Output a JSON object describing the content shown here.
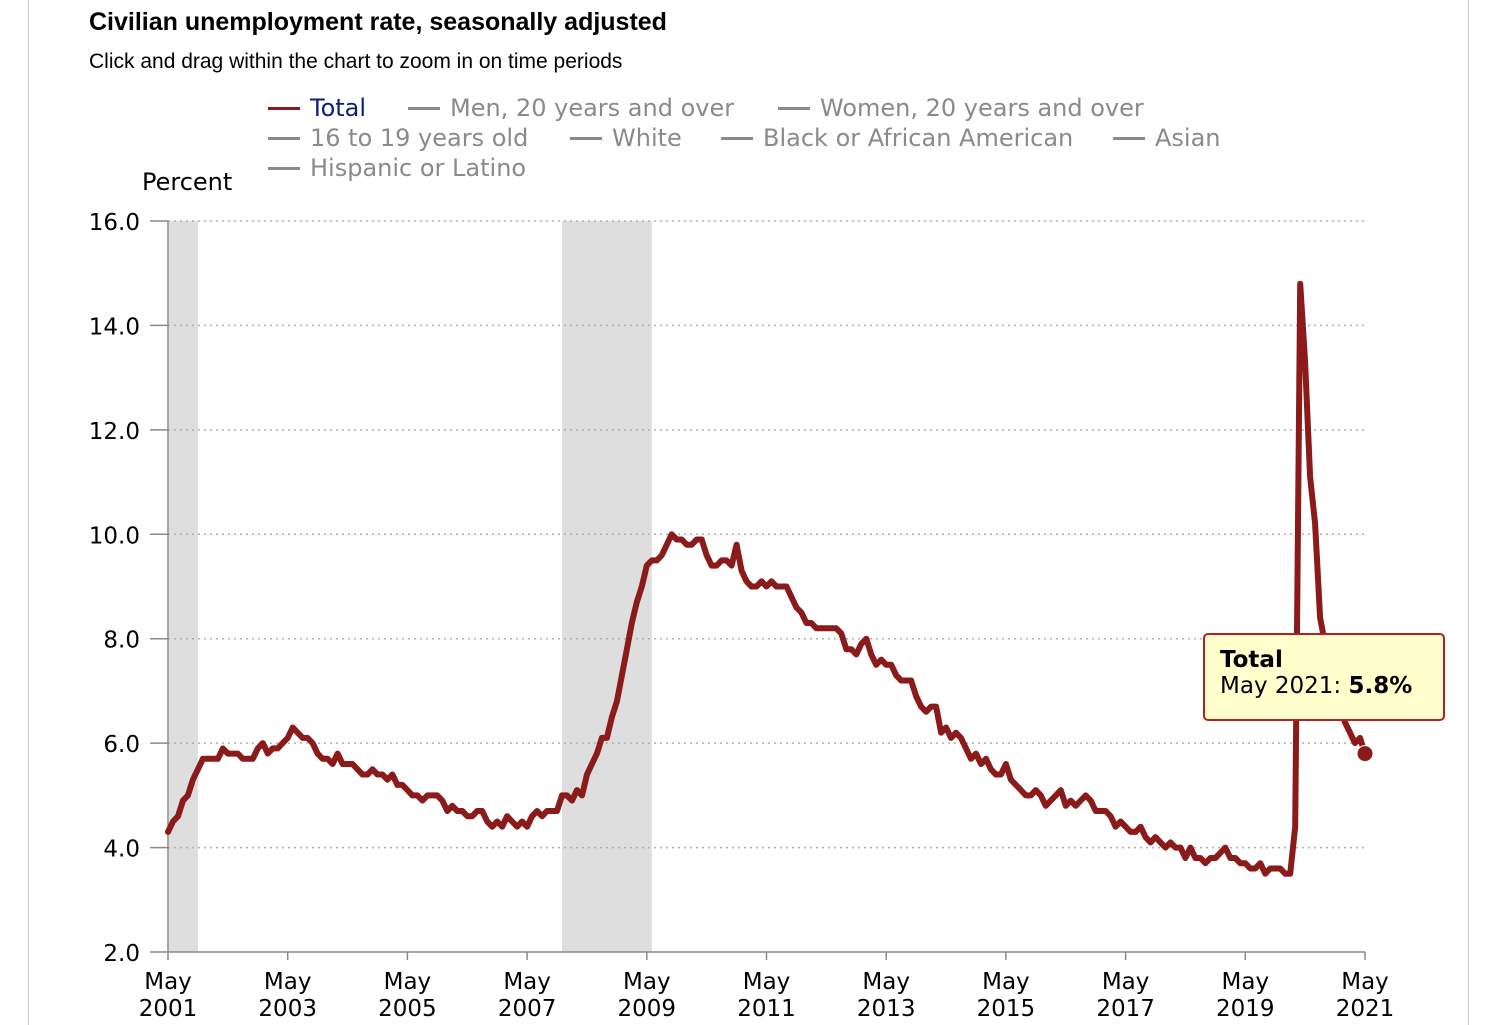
{
  "title": "Civilian unemployment rate, seasonally adjusted",
  "subtitle": "Click and drag within the chart to zoom in on time periods",
  "legend": [
    {
      "label": "Total",
      "active": true
    },
    {
      "label": "Men, 20 years and over",
      "active": false
    },
    {
      "label": "Women, 20 years and over",
      "active": false
    },
    {
      "label": "16 to 19 years old",
      "active": false
    },
    {
      "label": "White",
      "active": false
    },
    {
      "label": "Black or African American",
      "active": false
    },
    {
      "label": "Asian",
      "active": false
    },
    {
      "label": "Hispanic or Latino",
      "active": false
    }
  ],
  "tooltip": {
    "series": "Total",
    "date": "May 2021",
    "value": "5.8%"
  },
  "colors": {
    "series": "#8b1a1a",
    "recession": "#dedede",
    "grid": "#b0b0b0",
    "legend_active_text": "#0b1f7a",
    "legend_inactive": "#8a8a8a"
  },
  "chart_data": {
    "type": "line",
    "title": "Civilian unemployment rate, seasonally adjusted",
    "ylabel": "Percent",
    "xlabel": "",
    "ylim": [
      2.0,
      16.0
    ],
    "yticks": [
      "16.0",
      "14.0",
      "12.0",
      "10.0",
      "8.0",
      "6.0",
      "4.0",
      "2.0"
    ],
    "xlim": [
      "2001-05",
      "2021-05"
    ],
    "xticks": [
      {
        "month": "May",
        "year": "2001"
      },
      {
        "month": "May",
        "year": "2003"
      },
      {
        "month": "May",
        "year": "2005"
      },
      {
        "month": "May",
        "year": "2007"
      },
      {
        "month": "May",
        "year": "2009"
      },
      {
        "month": "May",
        "year": "2011"
      },
      {
        "month": "May",
        "year": "2013"
      },
      {
        "month": "May",
        "year": "2015"
      },
      {
        "month": "May",
        "year": "2017"
      },
      {
        "month": "May",
        "year": "2019"
      },
      {
        "month": "May",
        "year": "2021"
      }
    ],
    "grid": true,
    "recessions": [
      [
        "2001-03",
        "2001-11"
      ],
      [
        "2007-12",
        "2009-06"
      ]
    ],
    "series": [
      {
        "name": "Total",
        "x": [
          "2001-05",
          "2001-06",
          "2001-07",
          "2001-08",
          "2001-09",
          "2001-10",
          "2001-11",
          "2001-12",
          "2002-01",
          "2002-02",
          "2002-03",
          "2002-04",
          "2002-05",
          "2002-06",
          "2002-07",
          "2002-08",
          "2002-09",
          "2002-10",
          "2002-11",
          "2002-12",
          "2003-01",
          "2003-02",
          "2003-03",
          "2003-04",
          "2003-05",
          "2003-06",
          "2003-07",
          "2003-08",
          "2003-09",
          "2003-10",
          "2003-11",
          "2003-12",
          "2004-01",
          "2004-02",
          "2004-03",
          "2004-04",
          "2004-05",
          "2004-06",
          "2004-07",
          "2004-08",
          "2004-09",
          "2004-10",
          "2004-11",
          "2004-12",
          "2005-01",
          "2005-02",
          "2005-03",
          "2005-04",
          "2005-05",
          "2005-06",
          "2005-07",
          "2005-08",
          "2005-09",
          "2005-10",
          "2005-11",
          "2005-12",
          "2006-01",
          "2006-02",
          "2006-03",
          "2006-04",
          "2006-05",
          "2006-06",
          "2006-07",
          "2006-08",
          "2006-09",
          "2006-10",
          "2006-11",
          "2006-12",
          "2007-01",
          "2007-02",
          "2007-03",
          "2007-04",
          "2007-05",
          "2007-06",
          "2007-07",
          "2007-08",
          "2007-09",
          "2007-10",
          "2007-11",
          "2007-12",
          "2008-01",
          "2008-02",
          "2008-03",
          "2008-04",
          "2008-05",
          "2008-06",
          "2008-07",
          "2008-08",
          "2008-09",
          "2008-10",
          "2008-11",
          "2008-12",
          "2009-01",
          "2009-02",
          "2009-03",
          "2009-04",
          "2009-05",
          "2009-06",
          "2009-07",
          "2009-08",
          "2009-09",
          "2009-10",
          "2009-11",
          "2009-12",
          "2010-01",
          "2010-02",
          "2010-03",
          "2010-04",
          "2010-05",
          "2010-06",
          "2010-07",
          "2010-08",
          "2010-09",
          "2010-10",
          "2010-11",
          "2010-12",
          "2011-01",
          "2011-02",
          "2011-03",
          "2011-04",
          "2011-05",
          "2011-06",
          "2011-07",
          "2011-08",
          "2011-09",
          "2011-10",
          "2011-11",
          "2011-12",
          "2012-01",
          "2012-02",
          "2012-03",
          "2012-04",
          "2012-05",
          "2012-06",
          "2012-07",
          "2012-08",
          "2012-09",
          "2012-10",
          "2012-11",
          "2012-12",
          "2013-01",
          "2013-02",
          "2013-03",
          "2013-04",
          "2013-05",
          "2013-06",
          "2013-07",
          "2013-08",
          "2013-09",
          "2013-10",
          "2013-11",
          "2013-12",
          "2014-01",
          "2014-02",
          "2014-03",
          "2014-04",
          "2014-05",
          "2014-06",
          "2014-07",
          "2014-08",
          "2014-09",
          "2014-10",
          "2014-11",
          "2014-12",
          "2015-01",
          "2015-02",
          "2015-03",
          "2015-04",
          "2015-05",
          "2015-06",
          "2015-07",
          "2015-08",
          "2015-09",
          "2015-10",
          "2015-11",
          "2015-12",
          "2016-01",
          "2016-02",
          "2016-03",
          "2016-04",
          "2016-05",
          "2016-06",
          "2016-07",
          "2016-08",
          "2016-09",
          "2016-10",
          "2016-11",
          "2016-12",
          "2017-01",
          "2017-02",
          "2017-03",
          "2017-04",
          "2017-05",
          "2017-06",
          "2017-07",
          "2017-08",
          "2017-09",
          "2017-10",
          "2017-11",
          "2017-12",
          "2018-01",
          "2018-02",
          "2018-03",
          "2018-04",
          "2018-05",
          "2018-06",
          "2018-07",
          "2018-08",
          "2018-09",
          "2018-10",
          "2018-11",
          "2018-12",
          "2019-01",
          "2019-02",
          "2019-03",
          "2019-04",
          "2019-05",
          "2019-06",
          "2019-07",
          "2019-08",
          "2019-09",
          "2019-10",
          "2019-11",
          "2019-12",
          "2020-01",
          "2020-02",
          "2020-03",
          "2020-04",
          "2020-05",
          "2020-06",
          "2020-07",
          "2020-08",
          "2020-09",
          "2020-10",
          "2020-11",
          "2020-12",
          "2021-01",
          "2021-02",
          "2021-03",
          "2021-04",
          "2021-05"
        ],
        "values": [
          4.3,
          4.5,
          4.6,
          4.9,
          5.0,
          5.3,
          5.5,
          5.7,
          5.7,
          5.7,
          5.7,
          5.9,
          5.8,
          5.8,
          5.8,
          5.7,
          5.7,
          5.7,
          5.9,
          6.0,
          5.8,
          5.9,
          5.9,
          6.0,
          6.1,
          6.3,
          6.2,
          6.1,
          6.1,
          6.0,
          5.8,
          5.7,
          5.7,
          5.6,
          5.8,
          5.6,
          5.6,
          5.6,
          5.5,
          5.4,
          5.4,
          5.5,
          5.4,
          5.4,
          5.3,
          5.4,
          5.2,
          5.2,
          5.1,
          5.0,
          5.0,
          4.9,
          5.0,
          5.0,
          5.0,
          4.9,
          4.7,
          4.8,
          4.7,
          4.7,
          4.6,
          4.6,
          4.7,
          4.7,
          4.5,
          4.4,
          4.5,
          4.4,
          4.6,
          4.5,
          4.4,
          4.5,
          4.4,
          4.6,
          4.7,
          4.6,
          4.7,
          4.7,
          4.7,
          5.0,
          5.0,
          4.9,
          5.1,
          5.0,
          5.4,
          5.6,
          5.8,
          6.1,
          6.1,
          6.5,
          6.8,
          7.3,
          7.8,
          8.3,
          8.7,
          9.0,
          9.4,
          9.5,
          9.5,
          9.6,
          9.8,
          10.0,
          9.9,
          9.9,
          9.8,
          9.8,
          9.9,
          9.9,
          9.6,
          9.4,
          9.4,
          9.5,
          9.5,
          9.4,
          9.8,
          9.3,
          9.1,
          9.0,
          9.0,
          9.1,
          9.0,
          9.1,
          9.0,
          9.0,
          9.0,
          8.8,
          8.6,
          8.5,
          8.3,
          8.3,
          8.2,
          8.2,
          8.2,
          8.2,
          8.2,
          8.1,
          7.8,
          7.8,
          7.7,
          7.9,
          8.0,
          7.7,
          7.5,
          7.6,
          7.5,
          7.5,
          7.3,
          7.2,
          7.2,
          7.2,
          6.9,
          6.7,
          6.6,
          6.7,
          6.7,
          6.2,
          6.3,
          6.1,
          6.2,
          6.1,
          5.9,
          5.7,
          5.8,
          5.6,
          5.7,
          5.5,
          5.4,
          5.4,
          5.6,
          5.3,
          5.2,
          5.1,
          5.0,
          5.0,
          5.1,
          5.0,
          4.8,
          4.9,
          5.0,
          5.1,
          4.8,
          4.9,
          4.8,
          4.9,
          5.0,
          4.9,
          4.7,
          4.7,
          4.7,
          4.6,
          4.4,
          4.5,
          4.4,
          4.3,
          4.3,
          4.4,
          4.2,
          4.1,
          4.2,
          4.1,
          4.0,
          4.1,
          4.0,
          4.0,
          3.8,
          4.0,
          3.8,
          3.8,
          3.7,
          3.8,
          3.8,
          3.9,
          4.0,
          3.8,
          3.8,
          3.7,
          3.7,
          3.6,
          3.6,
          3.7,
          3.5,
          3.6,
          3.6,
          3.6,
          3.5,
          3.5,
          4.4,
          14.8,
          13.3,
          11.1,
          10.2,
          8.4,
          7.9,
          6.9,
          6.7,
          6.7,
          6.4,
          6.2,
          6.0,
          6.1,
          5.8
        ]
      }
    ]
  }
}
